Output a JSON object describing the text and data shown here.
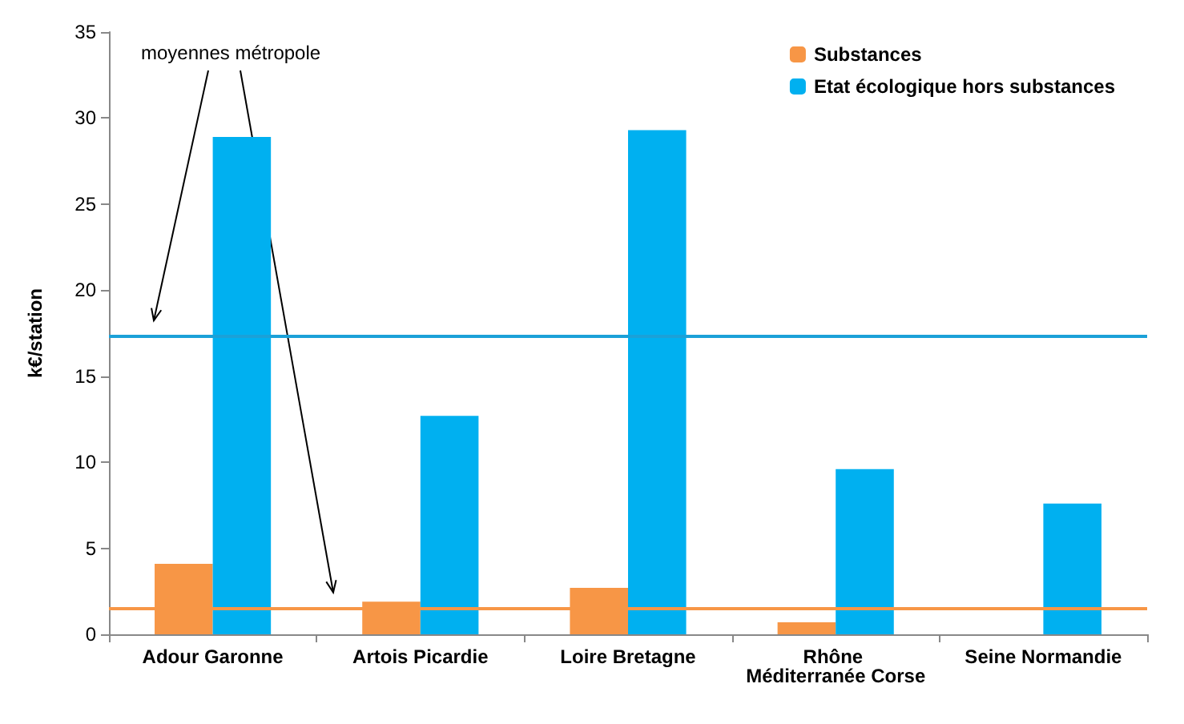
{
  "chart_data": {
    "type": "bar",
    "ylabel": "k€/station",
    "categories": [
      "Adour Garonne",
      "Artois Picardie",
      "Loire Bretagne",
      "Rhône Méditerranée Corse",
      "Seine Normandie"
    ],
    "series": [
      {
        "name": "Substances",
        "color": "#f79646",
        "values": [
          4.1,
          1.9,
          2.7,
          0.7,
          0
        ]
      },
      {
        "name": "Etat écologique hors substances",
        "color": "#00b0f0",
        "values": [
          28.9,
          12.7,
          29.3,
          9.6,
          7.6
        ]
      }
    ],
    "ylim": [
      0,
      35
    ],
    "yticks": [
      0,
      5,
      10,
      15,
      20,
      25,
      30,
      35
    ],
    "ref_lines": [
      {
        "axis": "y",
        "value": 17.3,
        "color": "#1ba1d8"
      },
      {
        "axis": "y",
        "value": 1.5,
        "color": "#f79646"
      }
    ],
    "annotations": [
      "moyennes métropole"
    ],
    "legend": "top right"
  }
}
